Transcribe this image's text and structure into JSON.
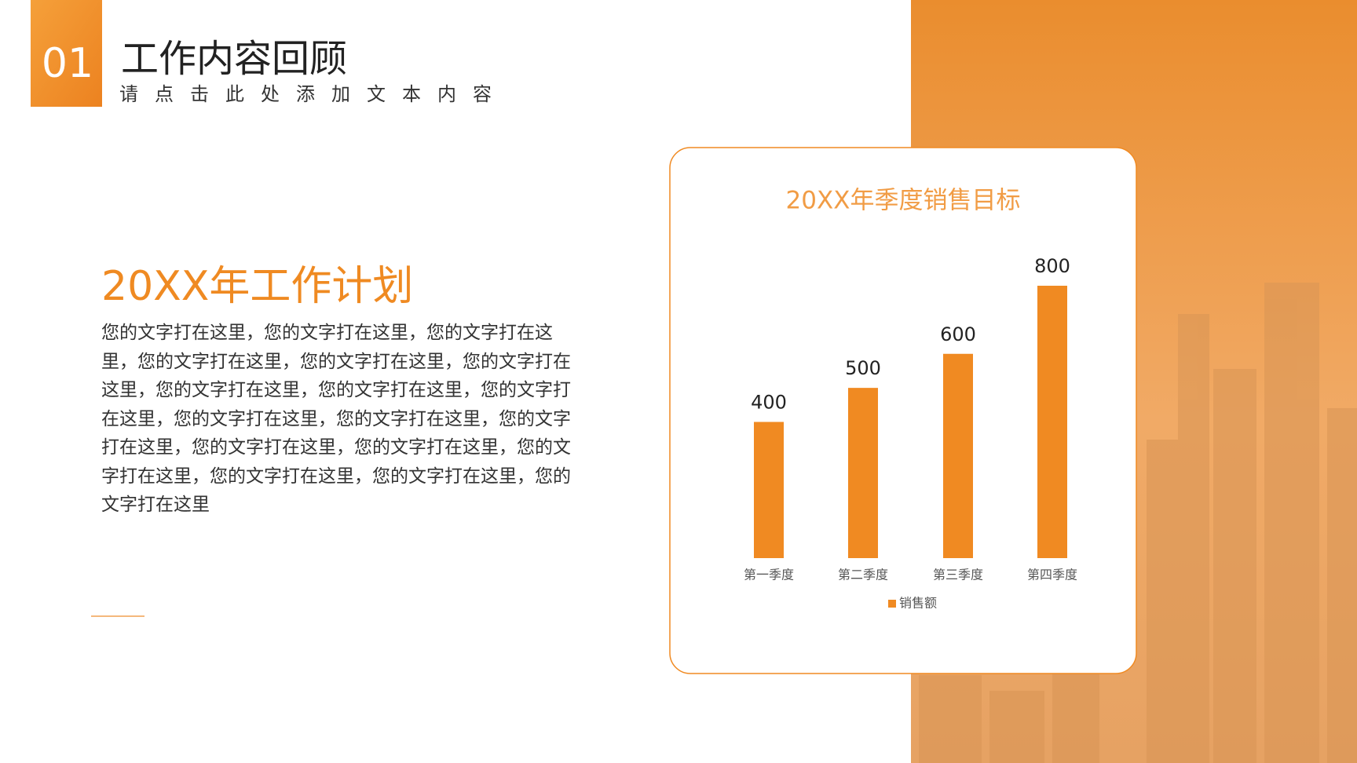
{
  "header": {
    "number": "01",
    "title": "工作内容回顾",
    "subtitle": "请点击此处添加文本内容"
  },
  "section": {
    "title": "20XX年工作计划",
    "body": "您的文字打在这里，您的文字打在这里，您的文字打在这里，您的文字打在这里，您的文字打在这里，您的文字打在这里，您的文字打在这里，您的文字打在这里，您的文字打在这里，您的文字打在这里，您的文字打在这里，您的文字打在这里，您的文字打在这里，您的文字打在这里，您的文字打在这里，您的文字打在这里，您的文字打在这里，您的文字打在这里"
  },
  "chart_data": {
    "type": "bar",
    "title": "20XX年季度销售目标",
    "categories": [
      "第一季度",
      "第二季度",
      "第三季度",
      "第四季度"
    ],
    "series": [
      {
        "name": "销售额",
        "color": "#f08a22",
        "values": [
          400,
          500,
          600,
          800
        ]
      }
    ],
    "show_value_labels": true,
    "legend": "bottom"
  }
}
